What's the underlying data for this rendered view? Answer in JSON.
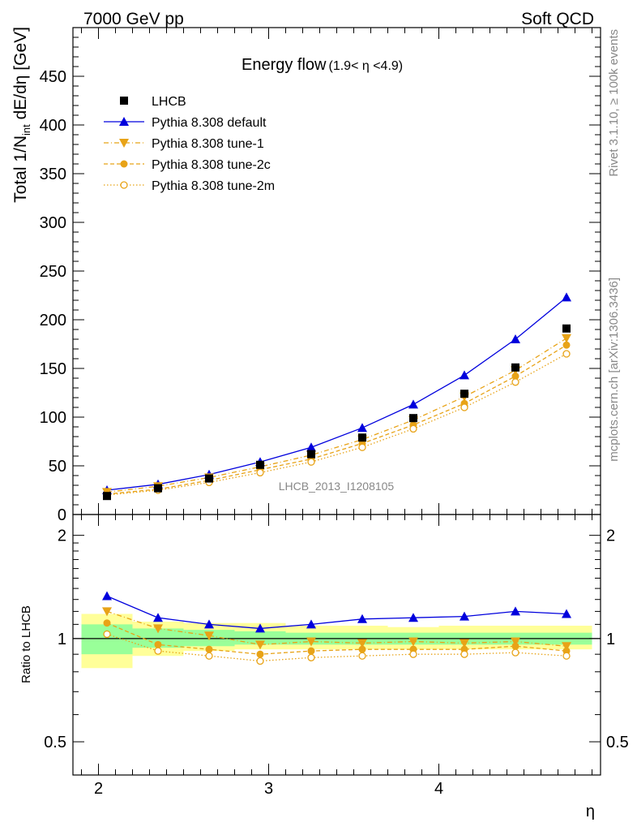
{
  "header": {
    "left": "7000 GeV pp",
    "right": "Soft QCD"
  },
  "side_labels": {
    "rivet": "Rivet 3.1.10, ≥ 100k events",
    "mcplots": "mcplots.cern.ch [arXiv:1306.3436]"
  },
  "colors": {
    "data": "#000000",
    "default": "#0000dd",
    "tune": "#e8a317",
    "band_inner": "#99ff99",
    "band_outer": "#ffff99"
  },
  "chart_data": [
    {
      "type": "line",
      "panel": "main",
      "title": "Energy flow",
      "title_suffix": "(1.9< η <4.9)",
      "ylabel": "Total 1/N",
      "ylabel_sub": "int",
      "ylabel_tail": " dE/dη [GeV]",
      "ylim": [
        0,
        500
      ],
      "yticks": [
        "0",
        "50",
        "100",
        "150",
        "200",
        "250",
        "300",
        "350",
        "400",
        "450"
      ],
      "xlim": [
        1.85,
        4.95
      ],
      "watermark": "LHCB_2013_I1208105",
      "legend_position": "top-left",
      "x": [
        2.05,
        2.35,
        2.65,
        2.95,
        3.25,
        3.55,
        3.85,
        4.15,
        4.45,
        4.75
      ],
      "x_edges": [
        1.9,
        2.2,
        2.5,
        2.8,
        3.1,
        3.4,
        3.7,
        4.0,
        4.3,
        4.6,
        4.9
      ],
      "series": [
        {
          "name": "LHCB",
          "marker": "square",
          "values": [
            19,
            27,
            37,
            51,
            62,
            79,
            99,
            124,
            151,
            191
          ]
        },
        {
          "name": "Pythia 8.308 default",
          "marker": "triangle-up",
          "line": "solid",
          "values": [
            25,
            31,
            41,
            54,
            69,
            89,
            113,
            143,
            180,
            223
          ]
        },
        {
          "name": "Pythia 8.308 tune-1",
          "marker": "triangle-down",
          "line": "dashdot",
          "values": [
            23,
            29,
            38,
            49,
            61,
            77,
            97,
            121,
            148,
            181
          ]
        },
        {
          "name": "Pythia 8.308 tune-2c",
          "marker": "circle-filled",
          "line": "dashed",
          "values": [
            21,
            26,
            35,
            46,
            57,
            73,
            92,
            114,
            142,
            174
          ]
        },
        {
          "name": "Pythia 8.308 tune-2m",
          "marker": "circle-open",
          "line": "dotted",
          "values": [
            20,
            25,
            33,
            43,
            54,
            69,
            88,
            110,
            136,
            165
          ]
        }
      ]
    },
    {
      "type": "line",
      "panel": "ratio",
      "ylabel": "Ratio to LHCB",
      "xlabel": "η",
      "ylim": [
        0.4,
        2.3
      ],
      "yscale": "log",
      "yticks": [
        "0.5",
        "1",
        "2"
      ],
      "xticks": [
        "2",
        "3",
        "4"
      ],
      "x": [
        2.05,
        2.35,
        2.65,
        2.95,
        3.25,
        3.55,
        3.85,
        4.15,
        4.45,
        4.75
      ],
      "band_inner": {
        "low": [
          0.9,
          0.94,
          0.95,
          0.96,
          0.96,
          0.96,
          0.96,
          0.96,
          0.96,
          0.96
        ],
        "high": [
          1.1,
          1.07,
          1.06,
          1.05,
          1.04,
          1.04,
          1.04,
          1.04,
          1.04,
          1.04
        ]
      },
      "band_outer": {
        "low": [
          0.82,
          0.89,
          0.92,
          0.93,
          0.93,
          0.93,
          0.93,
          0.93,
          0.93,
          0.93
        ],
        "high": [
          1.18,
          1.12,
          1.11,
          1.11,
          1.09,
          1.09,
          1.08,
          1.09,
          1.09,
          1.09
        ]
      },
      "series": [
        {
          "name": "Pythia 8.308 default",
          "values": [
            1.33,
            1.15,
            1.1,
            1.07,
            1.1,
            1.14,
            1.15,
            1.16,
            1.2,
            1.18
          ]
        },
        {
          "name": "Pythia 8.308 tune-1",
          "values": [
            1.2,
            1.07,
            1.02,
            0.96,
            0.98,
            0.97,
            0.98,
            0.97,
            0.98,
            0.95
          ]
        },
        {
          "name": "Pythia 8.308 tune-2c",
          "values": [
            1.11,
            0.96,
            0.93,
            0.9,
            0.92,
            0.93,
            0.93,
            0.93,
            0.95,
            0.92
          ]
        },
        {
          "name": "Pythia 8.308 tune-2m",
          "values": [
            1.03,
            0.92,
            0.89,
            0.86,
            0.88,
            0.89,
            0.9,
            0.9,
            0.91,
            0.89
          ]
        }
      ]
    }
  ]
}
